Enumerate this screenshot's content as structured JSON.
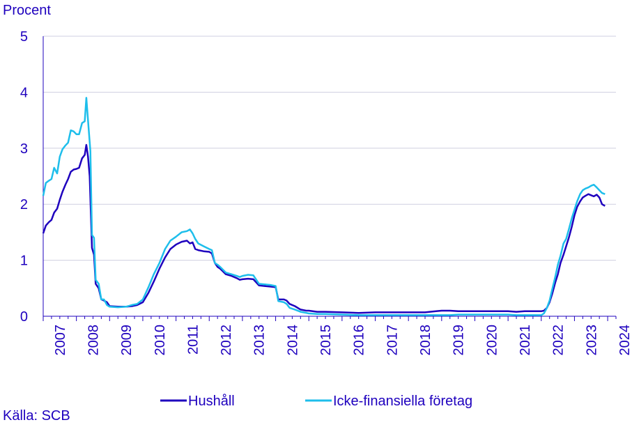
{
  "chart_data": {
    "type": "line",
    "ylabel": "Procent",
    "ylim": [
      0,
      5
    ],
    "yticks": [
      0,
      1,
      2,
      3,
      4,
      5
    ],
    "xlim": [
      2007.0,
      2024.25
    ],
    "xtick_labels": [
      "2007",
      "2008",
      "2009",
      "2010",
      "2011",
      "2012",
      "2013",
      "2014",
      "2015",
      "2016",
      "2017",
      "2018",
      "2019",
      "2020",
      "2021",
      "2022",
      "2023",
      "2024"
    ],
    "grid": true,
    "legend_position": "bottom-center",
    "source": "Källa: SCB",
    "series": [
      {
        "name": "Hushåll",
        "color": "#1e00be",
        "points": [
          [
            2007.0,
            1.48
          ],
          [
            2007.08,
            1.62
          ],
          [
            2007.17,
            1.68
          ],
          [
            2007.25,
            1.72
          ],
          [
            2007.33,
            1.85
          ],
          [
            2007.42,
            1.92
          ],
          [
            2007.5,
            2.08
          ],
          [
            2007.58,
            2.22
          ],
          [
            2007.67,
            2.35
          ],
          [
            2007.75,
            2.45
          ],
          [
            2007.83,
            2.58
          ],
          [
            2007.92,
            2.62
          ],
          [
            2008.0,
            2.63
          ],
          [
            2008.08,
            2.65
          ],
          [
            2008.17,
            2.82
          ],
          [
            2008.25,
            2.88
          ],
          [
            2008.3,
            3.06
          ],
          [
            2008.35,
            2.85
          ],
          [
            2008.4,
            2.5
          ],
          [
            2008.47,
            1.22
          ],
          [
            2008.53,
            1.1
          ],
          [
            2008.58,
            0.58
          ],
          [
            2008.67,
            0.5
          ],
          [
            2008.75,
            0.3
          ],
          [
            2008.83,
            0.28
          ],
          [
            2008.92,
            0.25
          ],
          [
            2009.0,
            0.18
          ],
          [
            2009.25,
            0.17
          ],
          [
            2009.5,
            0.17
          ],
          [
            2009.67,
            0.18
          ],
          [
            2009.83,
            0.2
          ],
          [
            2010.0,
            0.25
          ],
          [
            2010.17,
            0.42
          ],
          [
            2010.33,
            0.62
          ],
          [
            2010.5,
            0.85
          ],
          [
            2010.67,
            1.05
          ],
          [
            2010.83,
            1.2
          ],
          [
            2011.0,
            1.28
          ],
          [
            2011.17,
            1.33
          ],
          [
            2011.33,
            1.35
          ],
          [
            2011.42,
            1.3
          ],
          [
            2011.5,
            1.32
          ],
          [
            2011.58,
            1.2
          ],
          [
            2011.67,
            1.18
          ],
          [
            2011.83,
            1.16
          ],
          [
            2012.0,
            1.15
          ],
          [
            2012.08,
            1.12
          ],
          [
            2012.17,
            0.95
          ],
          [
            2012.25,
            0.88
          ],
          [
            2012.33,
            0.85
          ],
          [
            2012.5,
            0.75
          ],
          [
            2012.67,
            0.72
          ],
          [
            2012.83,
            0.68
          ],
          [
            2012.92,
            0.65
          ],
          [
            2013.0,
            0.66
          ],
          [
            2013.17,
            0.67
          ],
          [
            2013.33,
            0.66
          ],
          [
            2013.5,
            0.55
          ],
          [
            2013.67,
            0.54
          ],
          [
            2013.83,
            0.53
          ],
          [
            2014.0,
            0.52
          ],
          [
            2014.08,
            0.3
          ],
          [
            2014.25,
            0.3
          ],
          [
            2014.33,
            0.28
          ],
          [
            2014.42,
            0.22
          ],
          [
            2014.58,
            0.18
          ],
          [
            2014.75,
            0.12
          ],
          [
            2014.92,
            0.1
          ],
          [
            2015.0,
            0.1
          ],
          [
            2015.25,
            0.08
          ],
          [
            2015.5,
            0.08
          ],
          [
            2016.0,
            0.07
          ],
          [
            2016.5,
            0.06
          ],
          [
            2017.0,
            0.07
          ],
          [
            2017.5,
            0.07
          ],
          [
            2018.0,
            0.07
          ],
          [
            2018.5,
            0.07
          ],
          [
            2018.83,
            0.09
          ],
          [
            2019.0,
            0.1
          ],
          [
            2019.25,
            0.1
          ],
          [
            2019.5,
            0.09
          ],
          [
            2019.75,
            0.09
          ],
          [
            2020.0,
            0.09
          ],
          [
            2020.5,
            0.09
          ],
          [
            2021.0,
            0.09
          ],
          [
            2021.25,
            0.08
          ],
          [
            2021.5,
            0.09
          ],
          [
            2021.75,
            0.09
          ],
          [
            2022.0,
            0.09
          ],
          [
            2022.08,
            0.1
          ],
          [
            2022.17,
            0.15
          ],
          [
            2022.25,
            0.25
          ],
          [
            2022.33,
            0.4
          ],
          [
            2022.42,
            0.6
          ],
          [
            2022.5,
            0.75
          ],
          [
            2022.58,
            0.95
          ],
          [
            2022.67,
            1.1
          ],
          [
            2022.75,
            1.25
          ],
          [
            2022.83,
            1.4
          ],
          [
            2022.92,
            1.6
          ],
          [
            2023.0,
            1.8
          ],
          [
            2023.08,
            1.95
          ],
          [
            2023.17,
            2.05
          ],
          [
            2023.25,
            2.12
          ],
          [
            2023.33,
            2.15
          ],
          [
            2023.42,
            2.18
          ],
          [
            2023.5,
            2.16
          ],
          [
            2023.58,
            2.14
          ],
          [
            2023.67,
            2.17
          ],
          [
            2023.75,
            2.12
          ],
          [
            2023.83,
            2.0
          ],
          [
            2023.92,
            1.97
          ]
        ]
      },
      {
        "name": "Icke-finansiella företag",
        "color": "#1ebeeb",
        "points": [
          [
            2007.0,
            2.15
          ],
          [
            2007.08,
            2.38
          ],
          [
            2007.17,
            2.42
          ],
          [
            2007.25,
            2.45
          ],
          [
            2007.33,
            2.65
          ],
          [
            2007.42,
            2.55
          ],
          [
            2007.5,
            2.85
          ],
          [
            2007.58,
            2.98
          ],
          [
            2007.67,
            3.05
          ],
          [
            2007.75,
            3.1
          ],
          [
            2007.83,
            3.32
          ],
          [
            2007.92,
            3.3
          ],
          [
            2008.0,
            3.25
          ],
          [
            2008.08,
            3.25
          ],
          [
            2008.17,
            3.45
          ],
          [
            2008.25,
            3.48
          ],
          [
            2008.3,
            3.9
          ],
          [
            2008.35,
            3.5
          ],
          [
            2008.42,
            2.95
          ],
          [
            2008.47,
            1.45
          ],
          [
            2008.53,
            1.4
          ],
          [
            2008.58,
            0.65
          ],
          [
            2008.67,
            0.58
          ],
          [
            2008.75,
            0.3
          ],
          [
            2008.83,
            0.3
          ],
          [
            2008.92,
            0.2
          ],
          [
            2009.0,
            0.17
          ],
          [
            2009.25,
            0.16
          ],
          [
            2009.5,
            0.17
          ],
          [
            2009.67,
            0.2
          ],
          [
            2009.83,
            0.22
          ],
          [
            2010.0,
            0.3
          ],
          [
            2010.17,
            0.52
          ],
          [
            2010.33,
            0.75
          ],
          [
            2010.5,
            0.95
          ],
          [
            2010.67,
            1.2
          ],
          [
            2010.83,
            1.35
          ],
          [
            2011.0,
            1.42
          ],
          [
            2011.17,
            1.5
          ],
          [
            2011.33,
            1.52
          ],
          [
            2011.42,
            1.55
          ],
          [
            2011.5,
            1.48
          ],
          [
            2011.58,
            1.38
          ],
          [
            2011.67,
            1.3
          ],
          [
            2011.83,
            1.25
          ],
          [
            2012.0,
            1.2
          ],
          [
            2012.08,
            1.18
          ],
          [
            2012.17,
            0.95
          ],
          [
            2012.25,
            0.92
          ],
          [
            2012.33,
            0.88
          ],
          [
            2012.5,
            0.78
          ],
          [
            2012.67,
            0.75
          ],
          [
            2012.83,
            0.72
          ],
          [
            2012.92,
            0.7
          ],
          [
            2013.0,
            0.72
          ],
          [
            2013.17,
            0.74
          ],
          [
            2013.33,
            0.73
          ],
          [
            2013.5,
            0.58
          ],
          [
            2013.67,
            0.57
          ],
          [
            2013.83,
            0.56
          ],
          [
            2014.0,
            0.54
          ],
          [
            2014.08,
            0.27
          ],
          [
            2014.25,
            0.25
          ],
          [
            2014.33,
            0.22
          ],
          [
            2014.42,
            0.15
          ],
          [
            2014.58,
            0.12
          ],
          [
            2014.75,
            0.08
          ],
          [
            2014.92,
            0.06
          ],
          [
            2015.0,
            0.05
          ],
          [
            2015.25,
            0.04
          ],
          [
            2015.5,
            0.04
          ],
          [
            2016.0,
            0.03
          ],
          [
            2016.5,
            0.02
          ],
          [
            2017.0,
            0.02
          ],
          [
            2017.5,
            0.02
          ],
          [
            2018.0,
            0.02
          ],
          [
            2018.5,
            0.02
          ],
          [
            2018.83,
            0.02
          ],
          [
            2019.0,
            0.02
          ],
          [
            2019.25,
            0.02
          ],
          [
            2019.5,
            0.03
          ],
          [
            2019.75,
            0.03
          ],
          [
            2020.0,
            0.03
          ],
          [
            2020.5,
            0.03
          ],
          [
            2021.0,
            0.03
          ],
          [
            2021.25,
            0.02
          ],
          [
            2021.5,
            0.02
          ],
          [
            2021.75,
            0.02
          ],
          [
            2022.0,
            0.02
          ],
          [
            2022.08,
            0.05
          ],
          [
            2022.17,
            0.15
          ],
          [
            2022.25,
            0.28
          ],
          [
            2022.33,
            0.48
          ],
          [
            2022.42,
            0.7
          ],
          [
            2022.5,
            0.92
          ],
          [
            2022.58,
            1.08
          ],
          [
            2022.67,
            1.3
          ],
          [
            2022.75,
            1.38
          ],
          [
            2022.83,
            1.55
          ],
          [
            2022.92,
            1.75
          ],
          [
            2023.0,
            1.9
          ],
          [
            2023.08,
            2.05
          ],
          [
            2023.17,
            2.18
          ],
          [
            2023.25,
            2.25
          ],
          [
            2023.33,
            2.28
          ],
          [
            2023.42,
            2.3
          ],
          [
            2023.5,
            2.33
          ],
          [
            2023.58,
            2.35
          ],
          [
            2023.67,
            2.3
          ],
          [
            2023.75,
            2.25
          ],
          [
            2023.83,
            2.2
          ],
          [
            2023.92,
            2.18
          ]
        ]
      }
    ]
  }
}
